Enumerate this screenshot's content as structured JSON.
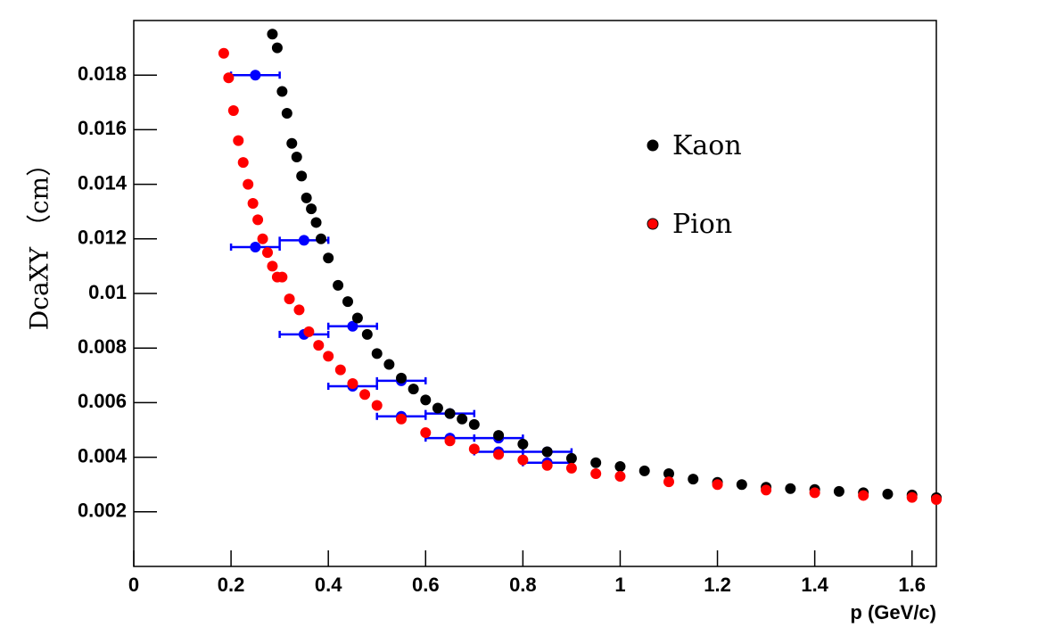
{
  "chart_data": {
    "type": "scatter",
    "x_label": "p (GeV/c)",
    "y_label": "DcaXY （cm）",
    "xlim": [
      0,
      1.65
    ],
    "ylim": [
      0,
      0.02
    ],
    "xticks": [
      0,
      0.2,
      0.4,
      0.6,
      0.8,
      1,
      1.2,
      1.4,
      1.6
    ],
    "yticks": [
      0.002,
      0.004,
      0.006,
      0.008,
      0.01,
      0.012,
      0.014,
      0.016,
      0.018
    ],
    "legend": "upper right",
    "series": [
      {
        "name": "Kaon",
        "color": "#000000",
        "x": [
          0.285,
          0.295,
          0.305,
          0.315,
          0.325,
          0.335,
          0.345,
          0.355,
          0.365,
          0.375,
          0.385,
          0.4,
          0.42,
          0.44,
          0.46,
          0.48,
          0.5,
          0.525,
          0.55,
          0.575,
          0.6,
          0.625,
          0.65,
          0.675,
          0.7,
          0.75,
          0.8,
          0.85,
          0.9,
          0.95,
          1.0,
          1.05,
          1.1,
          1.15,
          1.2,
          1.25,
          1.3,
          1.35,
          1.4,
          1.45,
          1.5,
          1.55,
          1.6,
          1.65
        ],
        "values": [
          0.0195,
          0.019,
          0.0174,
          0.0166,
          0.0155,
          0.015,
          0.0143,
          0.0135,
          0.0131,
          0.0126,
          0.012,
          0.0113,
          0.0103,
          0.0097,
          0.0091,
          0.0085,
          0.0078,
          0.0074,
          0.0069,
          0.0065,
          0.0061,
          0.0058,
          0.0056,
          0.0054,
          0.0052,
          0.0048,
          0.00448,
          0.0042,
          0.00396,
          0.0038,
          0.00366,
          0.0035,
          0.0034,
          0.0032,
          0.00308,
          0.003,
          0.0029,
          0.00285,
          0.00282,
          0.00275,
          0.0027,
          0.00265,
          0.00262,
          0.00252
        ]
      },
      {
        "name": "Pion",
        "color": "#ff0000",
        "x": [
          0.185,
          0.195,
          0.205,
          0.215,
          0.225,
          0.235,
          0.245,
          0.255,
          0.265,
          0.275,
          0.285,
          0.295,
          0.305,
          0.32,
          0.34,
          0.36,
          0.38,
          0.4,
          0.425,
          0.45,
          0.475,
          0.5,
          0.55,
          0.6,
          0.65,
          0.7,
          0.75,
          0.8,
          0.85,
          0.9,
          0.95,
          1.0,
          1.1,
          1.2,
          1.3,
          1.4,
          1.5,
          1.6,
          1.65
        ],
        "values": [
          0.0188,
          0.0179,
          0.0167,
          0.0156,
          0.0148,
          0.014,
          0.0133,
          0.0127,
          0.012,
          0.0115,
          0.011,
          0.0106,
          0.0106,
          0.0098,
          0.0094,
          0.0086,
          0.0081,
          0.0077,
          0.0072,
          0.0067,
          0.0063,
          0.0059,
          0.0054,
          0.0049,
          0.0046,
          0.0043,
          0.0041,
          0.0039,
          0.0037,
          0.0036,
          0.0034,
          0.0033,
          0.0031,
          0.003,
          0.0028,
          0.0027,
          0.0026,
          0.00253,
          0.00245
        ]
      },
      {
        "color": "#0000ff",
        "x": [
          0.25,
          0.35,
          0.45,
          0.55,
          0.65,
          0.75,
          0.85
        ],
        "xerr": [
          0.05,
          0.05,
          0.05,
          0.05,
          0.05,
          0.05,
          0.05
        ],
        "values": [
          0.018,
          0.01195,
          0.0088,
          0.0068,
          0.0056,
          0.0047,
          0.0042
        ]
      },
      {
        "color": "#0000ff",
        "x": [
          0.25,
          0.35,
          0.45,
          0.55,
          0.65,
          0.75,
          0.85
        ],
        "xerr": [
          0.05,
          0.05,
          0.05,
          0.05,
          0.05,
          0.05,
          0.05
        ],
        "values": [
          0.0117,
          0.0085,
          0.0066,
          0.0055,
          0.0047,
          0.0042,
          0.0038
        ]
      }
    ]
  }
}
